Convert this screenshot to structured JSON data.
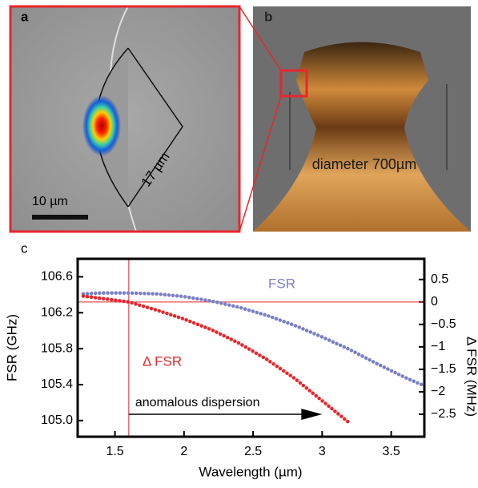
{
  "panels": {
    "a": {
      "label": "a",
      "scale_bar": "10 µm",
      "length": "17 µm"
    },
    "b": {
      "label": "b",
      "text": "diameter 700µm"
    }
  },
  "chart_data": {
    "type": "scatter",
    "panel_label": "c",
    "xlabel": "Wavelength (µm)",
    "ylabel": "FSR (GHz)",
    "y2label": "Δ FSR (MHz)",
    "x": [
      1.27,
      1.4,
      1.6,
      1.8,
      2.0,
      2.2,
      2.4,
      2.6,
      2.8,
      3.0,
      3.2,
      3.4,
      3.6,
      3.72
    ],
    "xlim": [
      1.23,
      3.74
    ],
    "ylim": [
      104.82,
      106.8
    ],
    "y2lim": [
      -3.0,
      0.96
    ],
    "xticks": [
      1.5,
      2,
      2.5,
      3,
      3.5
    ],
    "yticks": [
      {
        "value": 105,
        "label": "105.0"
      },
      105.4,
      105.8,
      106.2,
      106.6
    ],
    "y2ticks": [
      {
        "value": -2.5,
        "label": "−2.5"
      },
      {
        "value": -2,
        "label": "−2"
      },
      {
        "value": -1.5,
        "label": "−1.5"
      },
      {
        "value": -1,
        "label": "−1"
      },
      {
        "value": -0.5,
        "label": "−0.5"
      },
      0,
      0.5
    ],
    "series": [
      {
        "name": "FSR",
        "color": "#7b7fc4",
        "values": [
          106.41,
          106.42,
          106.42,
          106.41,
          106.38,
          106.33,
          106.26,
          106.17,
          106.06,
          105.93,
          105.79,
          105.63,
          105.48,
          105.4
        ]
      },
      {
        "name": "Δ FSR",
        "color": "#e8262c",
        "axis": "y2",
        "values": [
          0.13,
          0.08,
          0,
          -0.18,
          -0.38,
          -0.62,
          -0.92,
          -1.28,
          -1.7,
          -2.2,
          -2.7,
          null,
          null,
          null
        ]
      }
    ],
    "ref_line_x": 1.6,
    "ref_line_y2": 0,
    "ref_color": "#e8262c",
    "annotation": "anomalous dispersion",
    "arrow_x": [
      1.6,
      3.0
    ]
  }
}
